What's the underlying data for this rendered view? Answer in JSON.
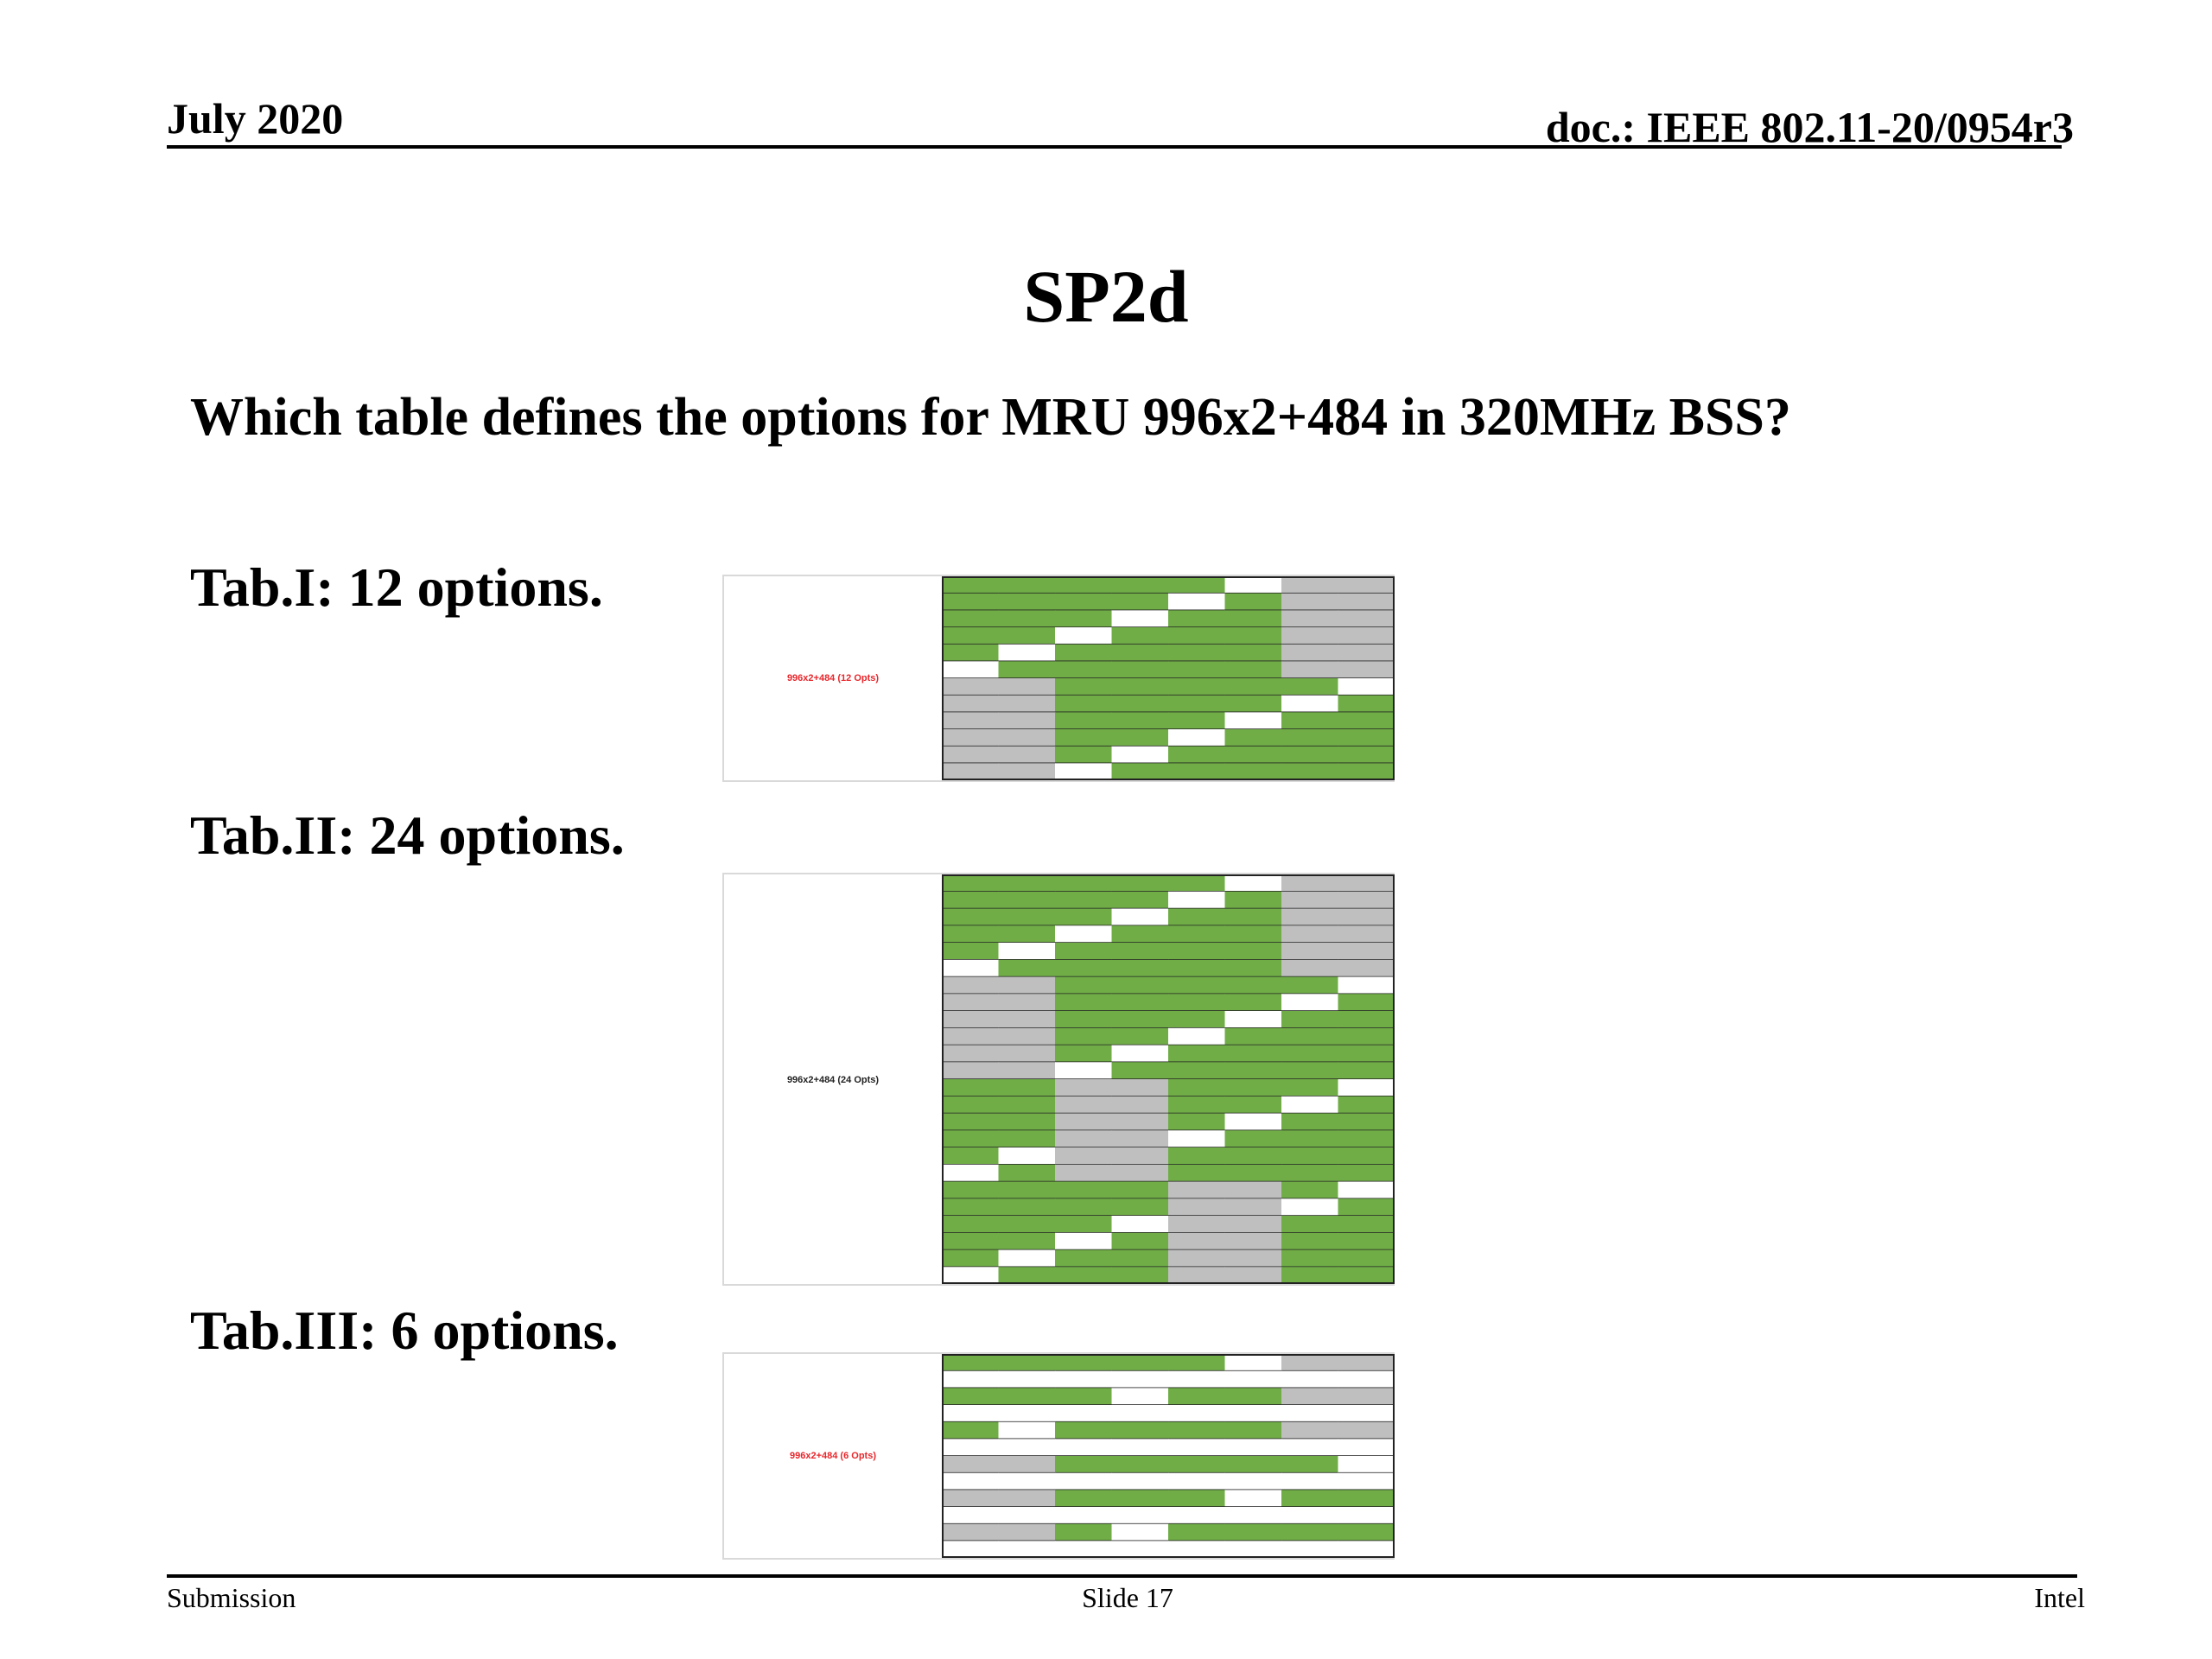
{
  "header": {
    "date": "July 2020",
    "doc": "doc.: IEEE 802.11-20/0954r3"
  },
  "slide_title": "SP2d",
  "question": "Which table defines the options for MRU 996x2+484 in 320MHz BSS?",
  "options": [
    {
      "label": "Tab.I: 12 options.",
      "table_caption": "996x2+484 (12 Opts)",
      "caption_color": "#e8262b"
    },
    {
      "label": "Tab.II: 24 options.",
      "table_caption": "996x2+484 (24 Opts)",
      "caption_color": "#222222"
    },
    {
      "label": "Tab.III: 6 options.",
      "table_caption": "996x2+484 (6 Opts)",
      "caption_color": "#e8262b"
    }
  ],
  "colors": {
    "allocated": "#70ad47",
    "punctured": "#bfbfbf",
    "unused": "#ffffff",
    "grid": "#222222"
  },
  "tables": {
    "tab1_rows": [
      "GGGGGWPP",
      "GGGGWGPP",
      "GGGWGGPP",
      "GGWGGGPP",
      "GWGGGGPP",
      "WGGGGGPP",
      "PPGGGGGW",
      "PPGGGGWG",
      "PPGGGWGG",
      "PPGGWGGG",
      "PPGWGGGG",
      "PPWGGGGG"
    ],
    "tab2_rows": [
      "GGGGGWPP",
      "GGGGWGPP",
      "GGGWGGPP",
      "GGWGGGPP",
      "GWGGGGPP",
      "WGGGGGPP",
      "PPGGGGGW",
      "PPGGGGWG",
      "PPGGGWGG",
      "PPGGWGGG",
      "PPGWGGGG",
      "PPWGGGGG",
      "GGPPGGGW",
      "GGPPGGWG",
      "GGPPGWGG",
      "GGPPWGGG",
      "GWPPGGGG",
      "WGPPGGGG",
      "GGGGPPGW",
      "GGGGPPWG",
      "GGGWPPGG",
      "GGWGPPGG",
      "GWGGPPGG",
      "WGGGPPGG"
    ],
    "tab3_rows": [
      "GGGGGWPP",
      "WWWWWWWW",
      "GGGWGGPP",
      "WWWWWWWW",
      "GWGGGGPP",
      "WWWWWWWW",
      "PPGGGGGW",
      "WWWWWWWW",
      "PPGGGWGG",
      "WWWWWWWW",
      "PPGWGGGG",
      "WWWWWWWW"
    ]
  },
  "footer": {
    "left": "Submission",
    "center": "Slide 17",
    "right": "Intel"
  }
}
